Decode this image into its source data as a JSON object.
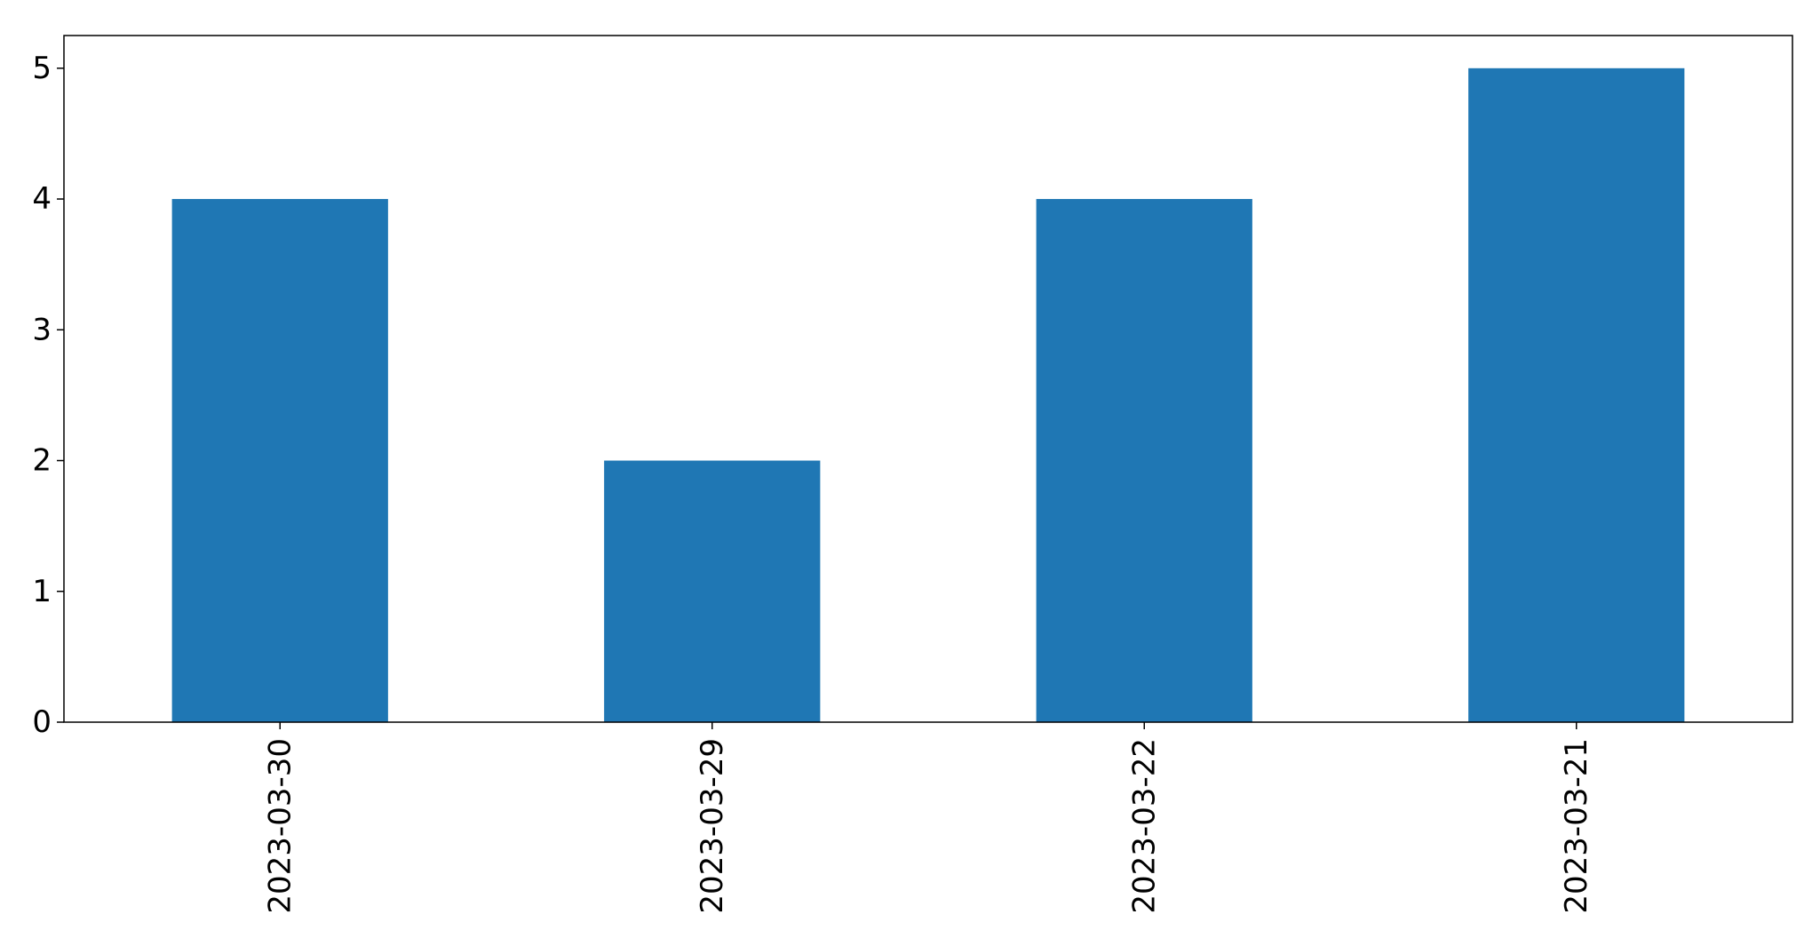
{
  "chart_data": {
    "type": "bar",
    "title": "",
    "xlabel": "",
    "ylabel": "",
    "categories": [
      "2023-03-30",
      "2023-03-29",
      "2023-03-22",
      "2023-03-21"
    ],
    "values": [
      4,
      2,
      4,
      5
    ],
    "ylim": [
      0,
      5.25
    ],
    "yticks": [
      0,
      1,
      2,
      3,
      4,
      5
    ],
    "grid": false,
    "legend": "none",
    "bar_color": "#1f77b4",
    "x_tick_rotation": "vertical"
  }
}
